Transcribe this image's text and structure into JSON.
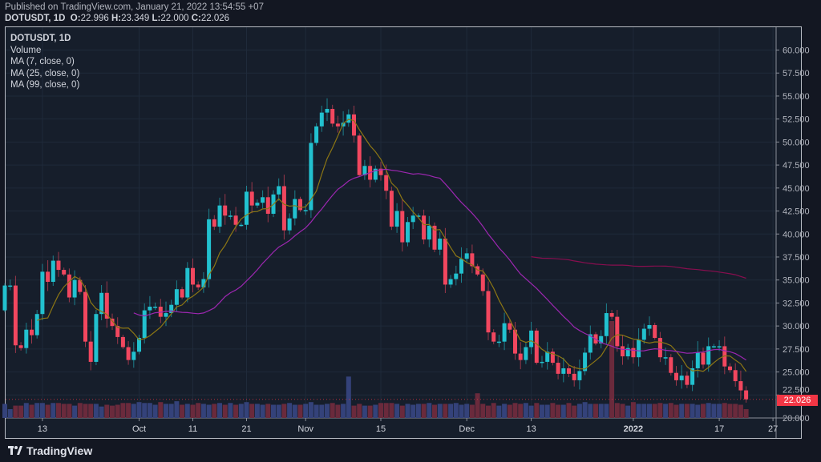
{
  "header": {
    "published": "Published on TradingView.com, January 21, 2022 13:54:55 +07",
    "symbol": "DOTUSDT, 1D",
    "o_label": "O:",
    "o": "22.996",
    "h_label": "H:",
    "h": "23.349",
    "l_label": "L:",
    "l": "22.000",
    "c_label": "C:",
    "c": "22.026"
  },
  "legend": {
    "symbol": "DOTUSDT, 1D",
    "volume": "Volume",
    "ma7": "MA (7, close, 0)",
    "ma25": "MA (25, close, 0)",
    "ma99": "MA (99, close, 0)"
  },
  "footer": {
    "brand": "TradingView"
  },
  "colors": {
    "up": "#22c1cf",
    "down": "#f2475f",
    "ma7": "#8c7614",
    "ma25": "#9c27b0",
    "ma99": "#880e4f",
    "vol_up": "#34427a",
    "vol_down": "#6a2a3c",
    "last_price": "#f23645"
  },
  "chart_data": {
    "type": "candlestick",
    "title": "DOTUSDT, 1D",
    "ylim": [
      20,
      60
    ],
    "y_ticks": [
      "20.000",
      "22.500",
      "25.000",
      "27.500",
      "30.000",
      "32.500",
      "35.000",
      "37.500",
      "40.000",
      "42.500",
      "45.000",
      "47.500",
      "50.000",
      "52.500",
      "55.000",
      "57.500",
      "60.000"
    ],
    "x_ticks": [
      {
        "label": "13",
        "index": 7
      },
      {
        "label": "Oct",
        "index": 25
      },
      {
        "label": "11",
        "index": 35
      },
      {
        "label": "21",
        "index": 45
      },
      {
        "label": "Nov",
        "index": 56
      },
      {
        "label": "15",
        "index": 70
      },
      {
        "label": "Dec",
        "index": 86
      },
      {
        "label": "13",
        "index": 98
      },
      {
        "label": "2022",
        "index": 117
      },
      {
        "label": "17",
        "index": 133
      },
      {
        "label": "27",
        "index": 143
      }
    ],
    "first_open": 31.7,
    "close": [
      34.4,
      34.4,
      27.9,
      27.6,
      29.6,
      29.0,
      31.3,
      35.9,
      34.8,
      37.1,
      36.1,
      35.6,
      33.1,
      35.0,
      33.7,
      28.3,
      26.1,
      31.3,
      33.6,
      30.8,
      30.0,
      28.8,
      27.7,
      26.3,
      27.2,
      28.7,
      31.7,
      32.1,
      32.1,
      31.0,
      31.4,
      32.3,
      34.0,
      33.1,
      36.3,
      34.5,
      34.2,
      35.1,
      41.6,
      40.8,
      43.1,
      42.0,
      42.0,
      41.0,
      41.0,
      44.6,
      43.1,
      43.4,
      44.0,
      42.2,
      44.3,
      45.2,
      40.4,
      41.7,
      43.8,
      42.6,
      42.6,
      49.9,
      51.7,
      53.2,
      53.6,
      52.0,
      51.7,
      52.1,
      53.0,
      50.7,
      46.4,
      47.4,
      45.9,
      47.1,
      46.4,
      44.7,
      40.8,
      42.5,
      39.1,
      41.3,
      42.0,
      42.0,
      39.4,
      40.9,
      38.3,
      39.5,
      34.5,
      35.1,
      35.7,
      37.3,
      37.9,
      36.5,
      35.6,
      33.8,
      29.3,
      28.3,
      28.3,
      30.3,
      29.6,
      27.0,
      26.3,
      27.7,
      29.5,
      26.0,
      26.1,
      27.2,
      26.0,
      24.8,
      25.4,
      24.8,
      24.1,
      25.1,
      27.1,
      29.1,
      28.1,
      28.9,
      31.4,
      31.0,
      27.8,
      26.7,
      27.6,
      26.6,
      28.5,
      29.7,
      30.1,
      28.7,
      26.6,
      26.6,
      24.9,
      24.1,
      24.6,
      23.6,
      25.4,
      27.1,
      25.8,
      27.8,
      27.8,
      27.8,
      25.6,
      25.2,
      24.0,
      23.0,
      22.026
    ],
    "volume": [
      16,
      10,
      14,
      14,
      17,
      15,
      17,
      17,
      15,
      17,
      17,
      16,
      16,
      14,
      17,
      16,
      16,
      16,
      13,
      15,
      14,
      15,
      17,
      17,
      16,
      18,
      17,
      17,
      15,
      18,
      16,
      16,
      19,
      15,
      16,
      15,
      17,
      16,
      15,
      16,
      17,
      15,
      17,
      15,
      16,
      18,
      16,
      16,
      15,
      16,
      15,
      15,
      16,
      17,
      15,
      15,
      16,
      18,
      15,
      15,
      16,
      17,
      15,
      16,
      47,
      14,
      16,
      14,
      14,
      15,
      17,
      17,
      17,
      16,
      14,
      16,
      15,
      16,
      16,
      17,
      15,
      16,
      16,
      16,
      17,
      15,
      16,
      15,
      28,
      16,
      14,
      17,
      14,
      16,
      15,
      17,
      16,
      17,
      14,
      17,
      15,
      15,
      17,
      15,
      15,
      17,
      14,
      16,
      18,
      16,
      16,
      16,
      16,
      110,
      17,
      16,
      14,
      18,
      16,
      16,
      16,
      16,
      17,
      16,
      17,
      15,
      16,
      16,
      16,
      15,
      16,
      17,
      16,
      16,
      17,
      16,
      16,
      15,
      10
    ],
    "series": [
      {
        "name": "MA (7, close, 0)",
        "period": 7
      },
      {
        "name": "MA (25, close, 0)",
        "period": 25
      },
      {
        "name": "MA (99, close, 0)",
        "period": 99
      }
    ],
    "last_price": "22.026"
  }
}
